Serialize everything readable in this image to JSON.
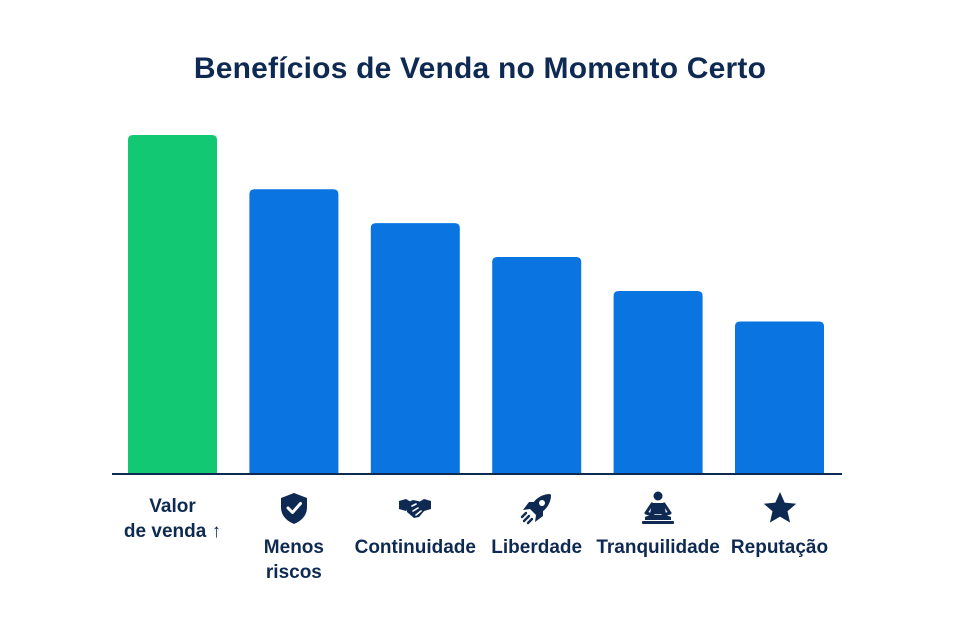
{
  "chart_data": {
    "type": "bar",
    "title": "Benefícios de Venda no Momento Certo",
    "xlabel": "",
    "ylabel": "",
    "ylim": [
      0,
      100
    ],
    "grid": false,
    "categories": [
      "Valor\nde venda ↑",
      "Menos\nriscos",
      "Continuidade",
      "Liberdade",
      "Tranquilidade",
      "Reputação"
    ],
    "values": [
      100,
      84,
      74,
      64,
      54,
      45
    ],
    "icons": [
      "",
      "shield-check-icon",
      "handshake-icon",
      "rocket-icon",
      "meditation-icon",
      "star-icon"
    ],
    "colors": [
      "#13c873",
      "#0a74e0",
      "#0a74e0",
      "#0a74e0",
      "#0a74e0",
      "#0a74e0"
    ]
  }
}
